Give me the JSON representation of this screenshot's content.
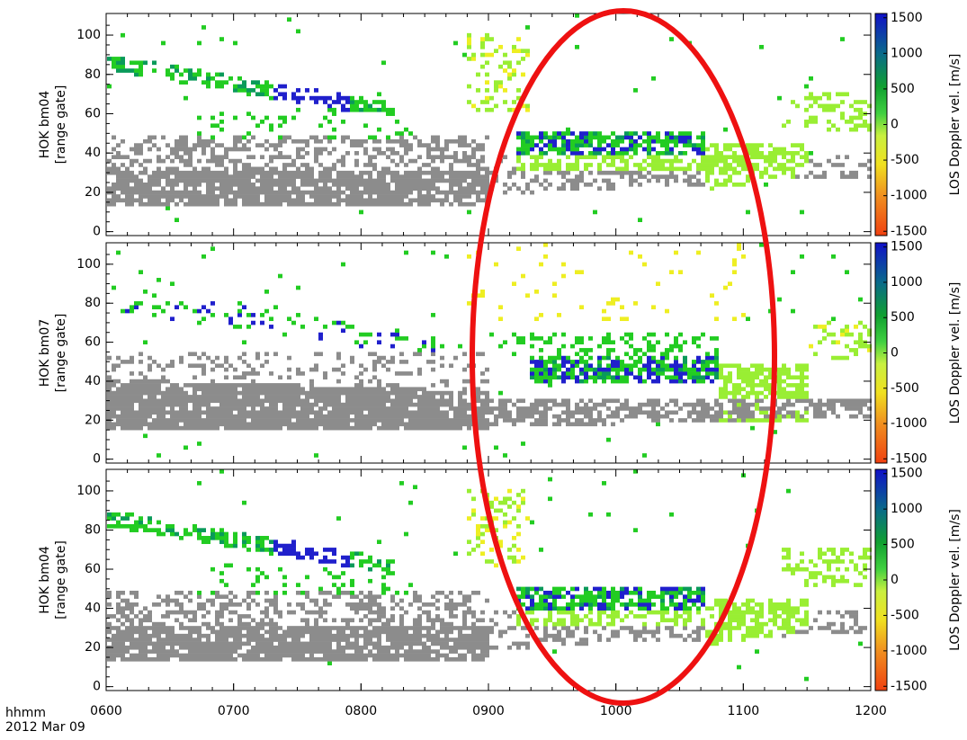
{
  "chart_data": [
    {
      "type": "range-time",
      "ylabel": [
        "HOK bm04",
        "[range gate]"
      ],
      "xlim": [
        6,
        12
      ],
      "ylim": [
        -2,
        111
      ],
      "yticks": [
        0,
        20,
        40,
        60,
        80,
        100
      ],
      "colorbar": {
        "label": "LOS Doppler vel. [m/s]",
        "lim": [
          -1560,
          1560
        ],
        "ticks": [
          1500,
          1000,
          500,
          0,
          -500,
          -1000,
          -1500
        ]
      }
    },
    {
      "type": "range-time",
      "ylabel": [
        "HOK bm07",
        "[range gate]"
      ],
      "xlim": [
        6,
        12
      ],
      "ylim": [
        -2,
        111
      ],
      "yticks": [
        0,
        20,
        40,
        60,
        80,
        100
      ],
      "colorbar": {
        "label": "LOS Doppler vel. [m/s]",
        "lim": [
          -1560,
          1560
        ],
        "ticks": [
          1500,
          1000,
          500,
          0,
          -500,
          -1000,
          -1500
        ]
      }
    },
    {
      "type": "range-time",
      "ylabel": [
        "HOK bm04",
        "[range gate]"
      ],
      "xlim": [
        6,
        12
      ],
      "ylim": [
        -2,
        111
      ],
      "yticks": [
        0,
        20,
        40,
        60,
        80,
        100
      ],
      "colorbar": {
        "label": "LOS Doppler vel. [m/s]",
        "lim": [
          -1560,
          1560
        ],
        "ticks": [
          1500,
          1000,
          500,
          0,
          -500,
          -1000,
          -1500
        ]
      },
      "xticks": [
        {
          "value": 6,
          "label": "0600"
        },
        {
          "value": 7,
          "label": "0700"
        },
        {
          "value": 8,
          "label": "0800"
        },
        {
          "value": 9,
          "label": "0900"
        },
        {
          "value": 10,
          "label": "1000"
        },
        {
          "value": 11,
          "label": "1100"
        },
        {
          "value": 12,
          "label": "1200"
        }
      ],
      "x_label": "hhmm",
      "date": "2012 Mar 09"
    }
  ]
}
